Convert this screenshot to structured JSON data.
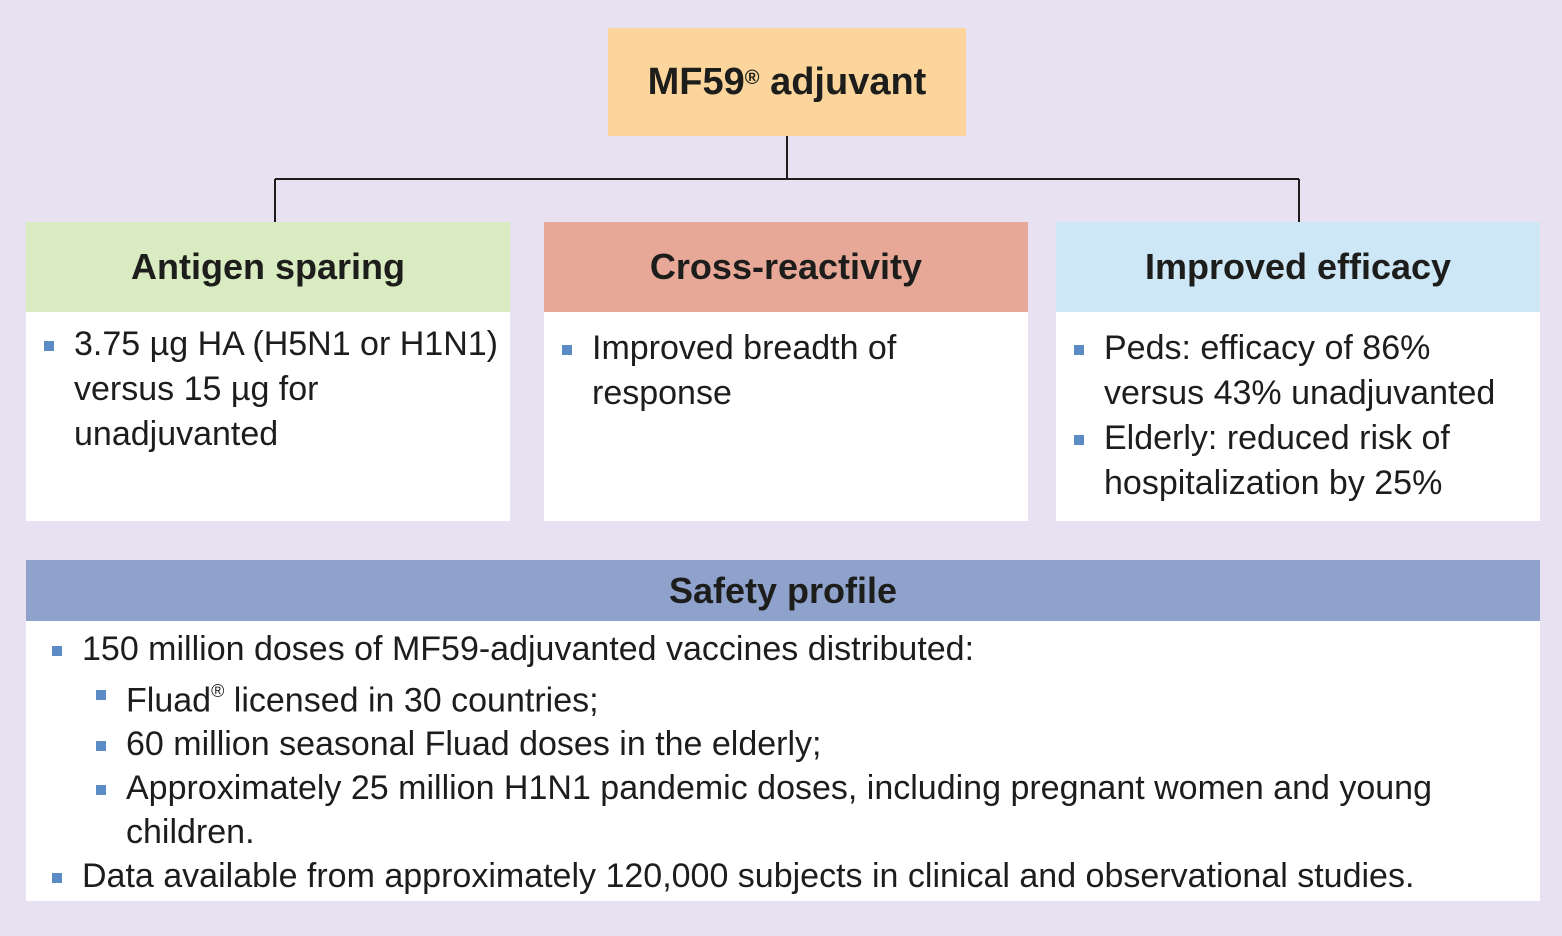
{
  "root": {
    "label": "MF59",
    "mark": "®",
    "suffix": " adjuvant"
  },
  "columns": [
    {
      "title": "Antigen sparing",
      "items": [
        "3.75 µg HA (H5N1 or H1N1) versus 15 µg for unadjuvanted"
      ]
    },
    {
      "title": "Cross-reactivity",
      "items": [
        "Improved breadth of response"
      ]
    },
    {
      "title": "Improved efficacy",
      "items": [
        "Peds: efficacy of 86% versus 43% unadjuvanted",
        "Elderly: reduced risk of hospitalization by 25%"
      ]
    }
  ],
  "safety": {
    "title": "Safety profile",
    "item1": "150 million doses of MF59-adjuvanted vaccines distributed:",
    "sub1_name": "Fluad",
    "sub1_mark": "®",
    "sub1_rest": " licensed in 30 countries;",
    "sub2": "60 million seasonal Fluad doses in the elderly;",
    "sub3": "Approximately 25 million H1N1 pandemic doses, including pregnant women and young children.",
    "item2": "Data available from approximately 120,000 subjects in clinical and observational studies."
  },
  "colors": {
    "background": "#e8e1f1",
    "root": "#fbd59c",
    "antigen": "#d9ebc0",
    "cross": "#e8a898",
    "efficacy": "#cde7f6",
    "safety": "#8fa2cc",
    "bullet": "#5b8cc6"
  }
}
